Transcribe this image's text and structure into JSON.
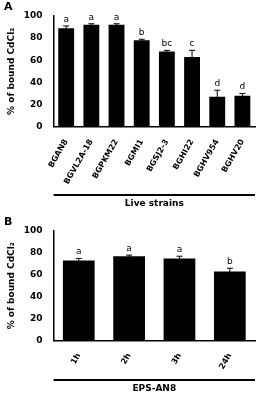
{
  "chart_data": [
    {
      "type": "bar",
      "panel_label": "A",
      "y_label": "% of bound CdCl₂",
      "group_label": "Live strains",
      "categories": [
        "BGAN8",
        "BGVL2A-18",
        "BGPKM22",
        "BGMI1",
        "BGSJ2-3",
        "BGHI22",
        "BGHV954",
        "BGHV20"
      ],
      "values": [
        89,
        92,
        92,
        78,
        68,
        63,
        27,
        28
      ],
      "errors": [
        2,
        1,
        1,
        1,
        1,
        6,
        6,
        2
      ],
      "group_letters": [
        "a",
        "a",
        "a",
        "b",
        "bc",
        "c",
        "d",
        "d"
      ],
      "color": "#000000",
      "ylim": [
        0,
        100
      ],
      "yticks": [
        0,
        20,
        40,
        60,
        80,
        100
      ],
      "grid": false
    },
    {
      "type": "bar",
      "panel_label": "B",
      "y_label": "% of bound CdCl₂",
      "group_label": "EPS-AN8",
      "categories": [
        "1h",
        "2h",
        "3h",
        "24h"
      ],
      "values": [
        73,
        77,
        75,
        63
      ],
      "errors": [
        2,
        1,
        2,
        3
      ],
      "group_letters": [
        "a",
        "a",
        "a",
        "b"
      ],
      "color": "#000000",
      "ylim": [
        0,
        100
      ],
      "yticks": [
        0,
        20,
        40,
        60,
        80,
        100
      ],
      "grid": false
    }
  ]
}
